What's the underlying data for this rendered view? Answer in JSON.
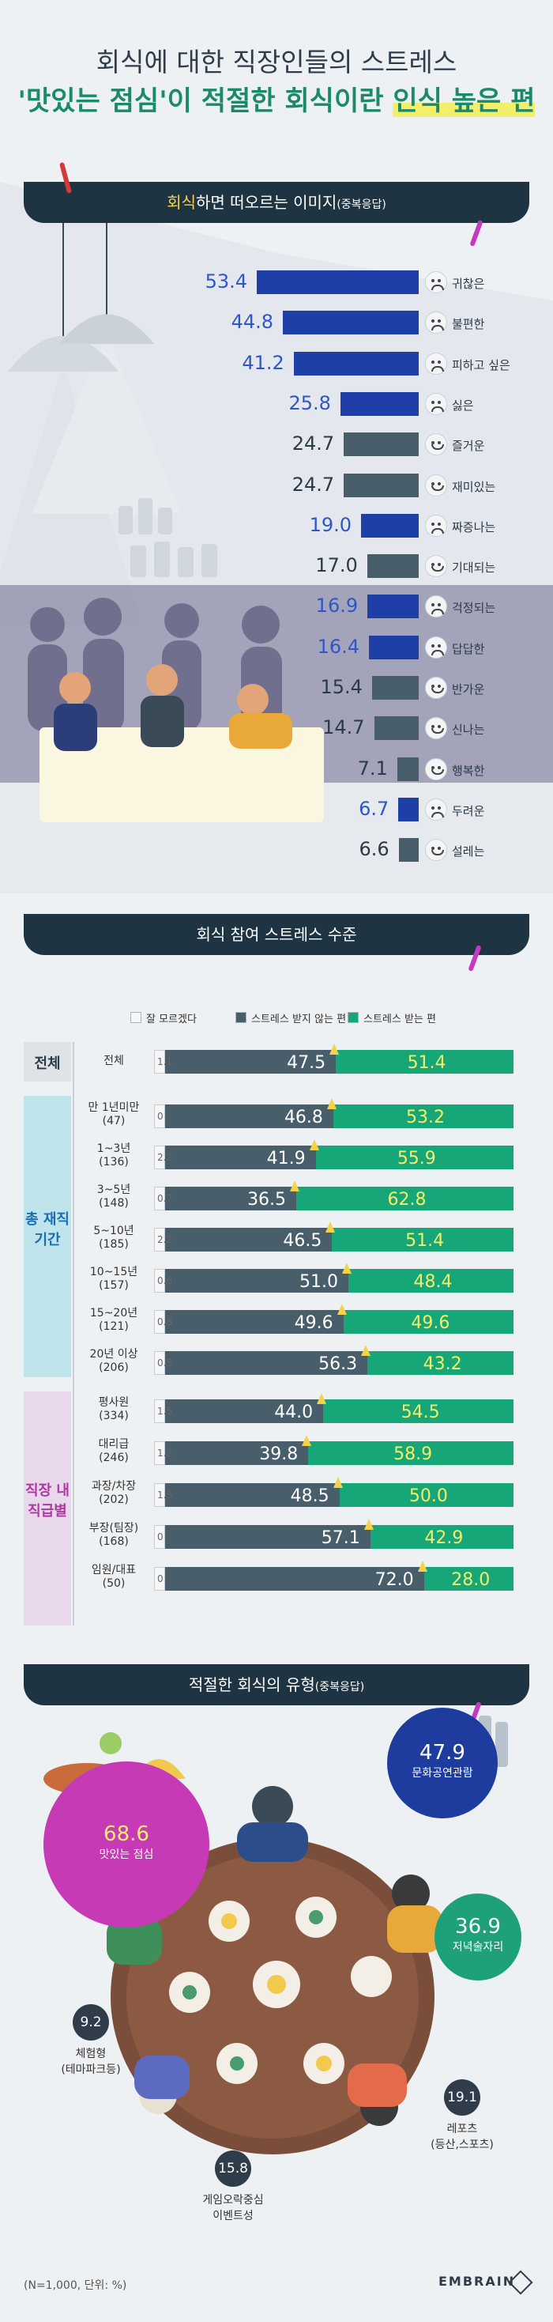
{
  "header": {
    "title1": "회식에 대한 직장인들의 스트레스",
    "title2_part1": "'맛있는 점심'이 적절한 회식이란",
    "title2_highlight": "인식 높은 편"
  },
  "section1": {
    "title_accent": "회식",
    "title_main": "하면 떠오르는 이미지",
    "title_sub": "(중복응답)"
  },
  "colors": {
    "blue": "#1f3fa8",
    "slate": "#485e6b",
    "green": "#17a678",
    "dontknow": "#f5f6f7",
    "pink": "#c63ab5",
    "navy": "#1d3c9e",
    "teal": "#1ea07a",
    "text_blue": "#2f56c9"
  },
  "chart_data": [
    {
      "type": "bar",
      "orientation": "horizontal",
      "categories": [
        "귀찮은",
        "불편한",
        "피하고 싶은",
        "싫은",
        "즐거운",
        "재미있는",
        "짜증나는",
        "기대되는",
        "걱정되는",
        "답답한",
        "반가운",
        "신나는",
        "행복한",
        "두려운",
        "설레는"
      ],
      "values": [
        53.4,
        44.8,
        41.2,
        25.8,
        24.7,
        24.7,
        19.0,
        17.0,
        16.9,
        16.4,
        15.4,
        14.7,
        7.1,
        6.7,
        6.6
      ],
      "value_labels": [
        "53.4",
        "44.8",
        "41.2",
        "25.8",
        "24.7",
        "24.7",
        "19.0",
        "17.0",
        "16.9",
        "16.4",
        "15.4",
        "14.7",
        "7.1",
        "6.7",
        "6.6"
      ],
      "sentiment": [
        "negative",
        "negative",
        "negative",
        "negative",
        "positive",
        "positive",
        "negative",
        "positive",
        "negative",
        "negative",
        "positive",
        "positive",
        "positive",
        "negative",
        "positive"
      ],
      "title": "회식하면 떠오르는 이미지(중복응답)"
    },
    {
      "type": "bar",
      "orientation": "horizontal",
      "stacked": true,
      "title": "회식 참여 스트레스 수준",
      "legend": [
        "잘 모르겠다",
        "스트레스 받지 않는 편",
        "스트레스 받는 편"
      ],
      "legend_position": "top",
      "groups": [
        {
          "label": "전체",
          "rows": [
            {
              "label": "전체",
              "n": "",
              "dontknow": "1.1",
              "not_stressed": "47.5",
              "stressed": "51.4"
            }
          ]
        },
        {
          "label": "총 재직 기간",
          "rows": [
            {
              "label": "만 1년미만",
              "n": "(47)",
              "dontknow": "0",
              "not_stressed": "46.8",
              "stressed": "53.2"
            },
            {
              "label": "1~3년",
              "n": "(136)",
              "dontknow": "2.2",
              "not_stressed": "41.9",
              "stressed": "55.9"
            },
            {
              "label": "3~5년",
              "n": "(148)",
              "dontknow": "0.7",
              "not_stressed": "36.5",
              "stressed": "62.8"
            },
            {
              "label": "5~10년",
              "n": "(185)",
              "dontknow": "2.2",
              "not_stressed": "46.5",
              "stressed": "51.4"
            },
            {
              "label": "10~15년",
              "n": "(157)",
              "dontknow": "0.6",
              "not_stressed": "51.0",
              "stressed": "48.4"
            },
            {
              "label": "15~20년",
              "n": "(121)",
              "dontknow": "0.8",
              "not_stressed": "49.6",
              "stressed": "49.6"
            },
            {
              "label": "20년 이상",
              "n": "(206)",
              "dontknow": "0.5",
              "not_stressed": "56.3",
              "stressed": "43.2"
            }
          ]
        },
        {
          "label": "직장 내 직급별",
          "rows": [
            {
              "label": "평사원",
              "n": "(334)",
              "dontknow": "1.5",
              "not_stressed": "44.0",
              "stressed": "54.5"
            },
            {
              "label": "대리급",
              "n": "(246)",
              "dontknow": "1.2",
              "not_stressed": "39.8",
              "stressed": "58.9"
            },
            {
              "label": "과장/차장",
              "n": "(202)",
              "dontknow": "1.5",
              "not_stressed": "48.5",
              "stressed": "50.0"
            },
            {
              "label": "부장(팀장)",
              "n": "(168)",
              "dontknow": "0",
              "not_stressed": "57.1",
              "stressed": "42.9"
            },
            {
              "label": "임원/대표",
              "n": "(50)",
              "dontknow": "0",
              "not_stressed": "72.0",
              "stressed": "28.0"
            }
          ]
        }
      ]
    },
    {
      "type": "bubble",
      "title": "적절한 회식의 유형(중복응답)",
      "items": [
        {
          "label": "맛있는 점심",
          "value": "68.6"
        },
        {
          "label": "문화공연관람",
          "value": "47.9"
        },
        {
          "label": "저녁술자리",
          "value": "36.9"
        },
        {
          "label": "레포츠 (등산,스포츠)",
          "label_line1": "레포츠",
          "label_line2": "(등산,스포츠)",
          "value": "19.1"
        },
        {
          "label": "게임오락중심 이벤트성",
          "label_line1": "게임오락중심",
          "label_line2": "이벤트성",
          "value": "15.8"
        },
        {
          "label": "체험형 (테마파크등)",
          "label_line1": "체험형",
          "label_line2": "(테마파크등)",
          "value": "9.2"
        }
      ]
    }
  ],
  "section2": {
    "title": "회식 참여 스트레스 수준"
  },
  "section3": {
    "title_main": "적절한 회식의 유형",
    "title_sub": "(중복응답)"
  },
  "footer": {
    "note": "(N=1,000, 단위: %)",
    "brand": "EMBRAIN"
  }
}
